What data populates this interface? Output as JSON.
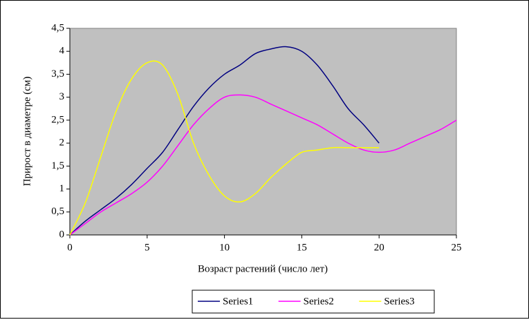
{
  "chart_data": {
    "type": "line",
    "x_label": "Возраст растений (число лет)",
    "y_label": "Прирост в диаметре (см)",
    "x": [
      0,
      1,
      2,
      3,
      4,
      5,
      6,
      7,
      8,
      9,
      10,
      11,
      12,
      13,
      14,
      15,
      16,
      17,
      18,
      19,
      20,
      21,
      22,
      23,
      24,
      25
    ],
    "series": [
      {
        "name": "Series1",
        "color": "#000080",
        "values": [
          0,
          0.3,
          0.55,
          0.8,
          1.1,
          1.45,
          1.8,
          2.3,
          2.8,
          3.2,
          3.5,
          3.7,
          3.95,
          4.05,
          4.1,
          4.0,
          3.7,
          3.25,
          2.75,
          2.4,
          2.0,
          null,
          null,
          null,
          null,
          null
        ]
      },
      {
        "name": "Series2",
        "color": "#ff00ff",
        "values": [
          0,
          0.25,
          0.5,
          0.7,
          0.9,
          1.15,
          1.5,
          1.95,
          2.4,
          2.75,
          3.0,
          3.05,
          3.0,
          2.85,
          2.7,
          2.55,
          2.4,
          2.2,
          2.0,
          1.85,
          1.8,
          1.85,
          2.0,
          2.15,
          2.3,
          2.5
        ]
      },
      {
        "name": "Series3",
        "color": "#ffff00",
        "values": [
          0,
          0.7,
          1.7,
          2.7,
          3.4,
          3.75,
          3.7,
          3.05,
          2.0,
          1.3,
          0.85,
          0.72,
          0.9,
          1.25,
          1.55,
          1.8,
          1.85,
          1.9,
          1.9,
          1.9,
          1.9,
          null,
          null,
          null,
          null,
          null
        ]
      }
    ],
    "xlim": [
      0,
      25
    ],
    "xticks": [
      0,
      5,
      10,
      15,
      20,
      25
    ],
    "ylim": [
      0,
      4.5
    ],
    "yticks": [
      0,
      {
        "value": 0.5,
        "label": "0,5"
      },
      1,
      {
        "value": 1.5,
        "label": "1,5"
      },
      2,
      {
        "value": 2.5,
        "label": "2,5"
      },
      3,
      {
        "value": 3.5,
        "label": "3,5"
      },
      4,
      {
        "value": 4.5,
        "label": "4,5"
      }
    ],
    "grid": false,
    "legend": "bottom",
    "plot_background": "#c0c0c0"
  }
}
